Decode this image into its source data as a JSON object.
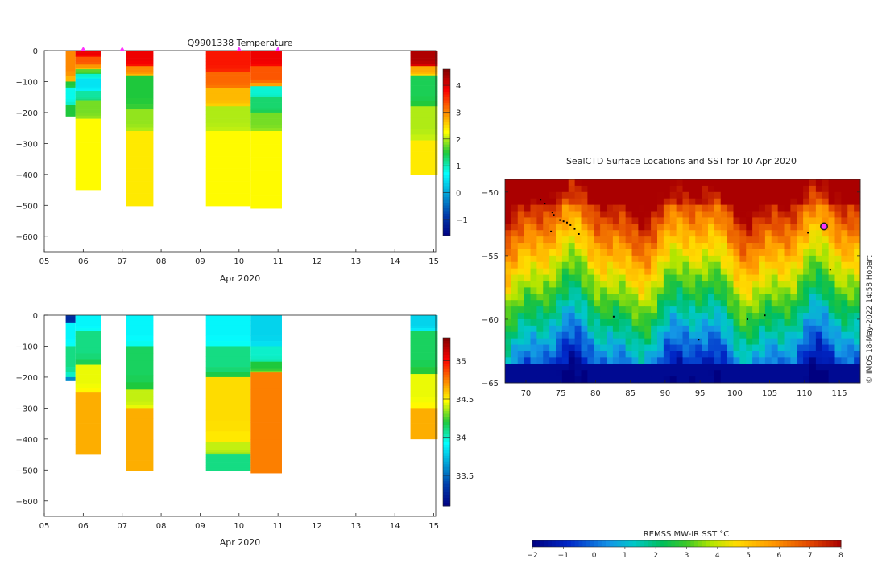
{
  "chart_data": [
    {
      "type": "heatmap",
      "title": "Q9901338  Temperature",
      "xlabel": "Apr 2020",
      "x_ticks": [
        "05",
        "06",
        "07",
        "08",
        "09",
        "10",
        "11",
        "12",
        "13",
        "14",
        "15"
      ],
      "xlim": [
        5,
        15.05
      ],
      "ylim": [
        -650,
        0
      ],
      "y_ticks": [
        0,
        -100,
        -200,
        -300,
        -400,
        -500,
        -600
      ],
      "colorbar": {
        "range": [
          -1.6,
          4.6
        ],
        "ticks": [
          -1,
          0,
          1,
          2,
          3,
          4
        ]
      },
      "markers_x": [
        6.0,
        7.0,
        10.0,
        11.0
      ],
      "marker_color": "#ff33ff",
      "profiles": [
        {
          "x0": 5.55,
          "x1": 5.8,
          "bands": [
            [
              0,
              -100,
              3.0
            ],
            [
              -100,
              -120,
              1.5
            ],
            [
              -120,
              -175,
              0.8
            ],
            [
              -175,
              -212,
              1.5
            ]
          ]
        },
        {
          "x0": 5.8,
          "x1": 6.45,
          "bands": [
            [
              0,
              -20,
              3.9
            ],
            [
              -20,
              -45,
              3.3
            ],
            [
              -45,
              -60,
              2.9
            ],
            [
              -60,
              -75,
              1.7
            ],
            [
              -75,
              -90,
              0.9
            ],
            [
              -90,
              -130,
              0.5
            ],
            [
              -130,
              -160,
              1.1
            ],
            [
              -160,
              -220,
              1.8
            ],
            [
              -220,
              -450,
              2.3
            ]
          ]
        },
        {
          "x0": 7.1,
          "x1": 7.8,
          "bands": [
            [
              0,
              -50,
              3.9
            ],
            [
              -50,
              -80,
              3.0
            ],
            [
              -80,
              -190,
              1.5
            ],
            [
              -190,
              -260,
              1.9
            ],
            [
              -260,
              -502,
              2.4
            ]
          ]
        },
        {
          "x0": 9.15,
          "x1": 10.3,
          "bands": [
            [
              0,
              -70,
              3.7
            ],
            [
              -70,
              -120,
              3.2
            ],
            [
              -120,
              -180,
              2.7
            ],
            [
              -180,
              -260,
              2.0
            ],
            [
              -260,
              -502,
              2.3
            ]
          ]
        },
        {
          "x0": 10.3,
          "x1": 11.1,
          "bands": [
            [
              0,
              -50,
              3.9
            ],
            [
              -50,
              -115,
              3.3
            ],
            [
              -115,
              -150,
              0.9
            ],
            [
              -150,
              -200,
              1.3
            ],
            [
              -200,
              -260,
              1.8
            ],
            [
              -260,
              -510,
              2.3
            ]
          ]
        },
        {
          "x0": 14.4,
          "x1": 15.1,
          "bands": [
            [
              0,
              -50,
              4.3
            ],
            [
              -50,
              -80,
              2.8
            ],
            [
              -80,
              -180,
              1.4
            ],
            [
              -180,
              -290,
              2.0
            ],
            [
              -290,
              -400,
              2.4
            ]
          ]
        }
      ]
    },
    {
      "type": "heatmap",
      "title": "",
      "xlabel": "Apr 2020",
      "x_ticks": [
        "05",
        "06",
        "07",
        "08",
        "09",
        "10",
        "11",
        "12",
        "13",
        "14",
        "15"
      ],
      "xlim": [
        5,
        15.05
      ],
      "ylim": [
        -650,
        0
      ],
      "y_ticks": [
        0,
        -100,
        -200,
        -300,
        -400,
        -500,
        -600
      ],
      "colorbar": {
        "range": [
          33.1,
          35.3
        ],
        "ticks": [
          33.5,
          34,
          34.5,
          35
        ],
        "tick_labels": [
          "33.5",
          "34",
          "34.5",
          "35"
        ]
      },
      "profiles": [
        {
          "x0": 5.55,
          "x1": 5.8,
          "bands": [
            [
              0,
              -25,
              33.3
            ],
            [
              -25,
              -100,
              33.9
            ],
            [
              -100,
              -200,
              34.1
            ],
            [
              -200,
              -212,
              33.6
            ]
          ]
        },
        {
          "x0": 5.8,
          "x1": 6.45,
          "bands": [
            [
              0,
              -50,
              33.9
            ],
            [
              -50,
              -160,
              34.1
            ],
            [
              -160,
              -250,
              34.45
            ],
            [
              -250,
              -450,
              34.65
            ]
          ]
        },
        {
          "x0": 7.1,
          "x1": 7.8,
          "bands": [
            [
              0,
              -100,
              33.9
            ],
            [
              -100,
              -240,
              34.15
            ],
            [
              -240,
              -300,
              34.4
            ],
            [
              -300,
              -502,
              34.65
            ]
          ]
        },
        {
          "x0": 9.15,
          "x1": 10.3,
          "bands": [
            [
              0,
              -100,
              33.9
            ],
            [
              -100,
              -200,
              34.1
            ],
            [
              -200,
              -410,
              34.55
            ],
            [
              -410,
              -450,
              34.4
            ],
            [
              -450,
              -502,
              34.1
            ]
          ]
        },
        {
          "x0": 10.3,
          "x1": 11.1,
          "bands": [
            [
              0,
              -100,
              33.8
            ],
            [
              -100,
              -150,
              34.0
            ],
            [
              -150,
              -185,
              34.2
            ],
            [
              -185,
              -510,
              34.75
            ]
          ]
        },
        {
          "x0": 14.4,
          "x1": 15.1,
          "bands": [
            [
              0,
              -50,
              33.8
            ],
            [
              -50,
              -190,
              34.15
            ],
            [
              -190,
              -300,
              34.45
            ],
            [
              -300,
              -400,
              34.65
            ]
          ]
        }
      ]
    },
    {
      "type": "heatmap",
      "title": "SealCTD Surface Locations and SST for 10 Apr 2020",
      "xlim": [
        67,
        118
      ],
      "ylim": [
        -65,
        -49
      ],
      "x_ticks": [
        70,
        75,
        80,
        85,
        90,
        95,
        100,
        105,
        110,
        115
      ],
      "y_ticks": [
        -50,
        -55,
        -60,
        -65
      ],
      "colorbar": {
        "label": "REMSS MW-IR SST °C",
        "range": [
          -2,
          8
        ],
        "ticks": [
          -2,
          -1,
          0,
          1,
          2,
          3,
          4,
          5,
          6,
          7,
          8
        ]
      },
      "highlight_point": [
        112.8,
        -52.7
      ],
      "track_points": [
        [
          72.1,
          -50.6
        ],
        [
          72.7,
          -50.9
        ],
        [
          73.8,
          -51.6
        ],
        [
          74.0,
          -51.8
        ],
        [
          74.9,
          -52.2
        ],
        [
          75.4,
          -52.3
        ],
        [
          75.9,
          -52.4
        ],
        [
          76.4,
          -52.6
        ],
        [
          77.0,
          -52.9
        ],
        [
          77.6,
          -53.3
        ],
        [
          73.6,
          -53.1
        ],
        [
          82.6,
          -59.8
        ],
        [
          101.8,
          -60.0
        ],
        [
          104.3,
          -59.7
        ],
        [
          110.5,
          -53.2
        ],
        [
          113.7,
          -56.1
        ],
        [
          94.8,
          -61.6
        ]
      ]
    }
  ],
  "side_text": "© IMOS 18-May-2022 14:58 Hobart"
}
